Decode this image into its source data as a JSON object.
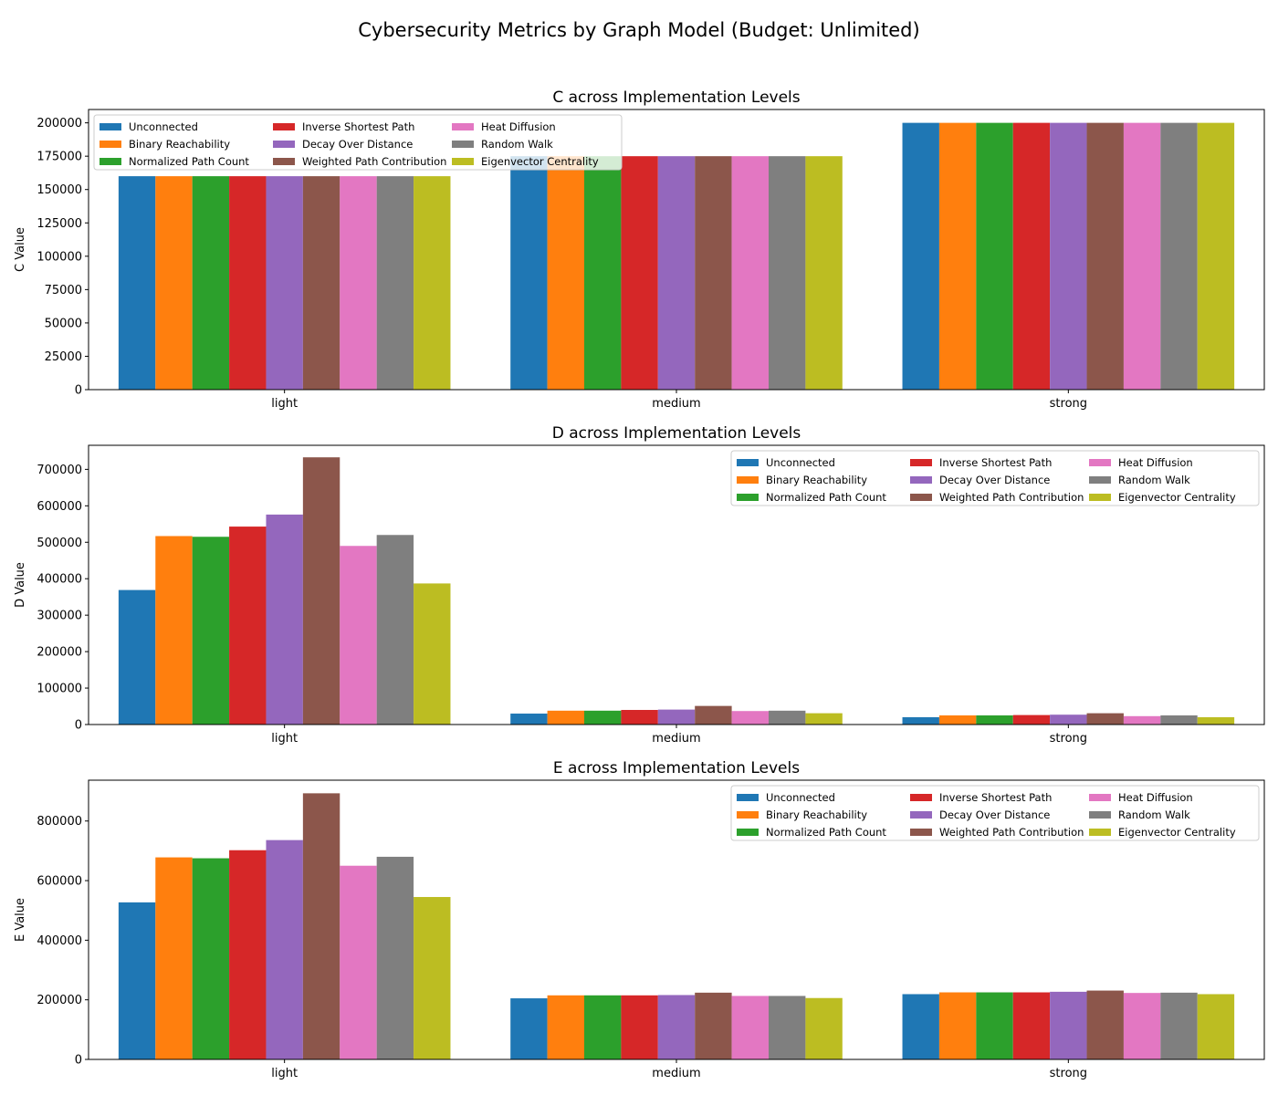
{
  "figure": {
    "title": "Cybersecurity Metrics by Graph Model (Budget: Unlimited)"
  },
  "colors": {
    "Unconnected": "#1f77b4",
    "Binary Reachability": "#ff7f0e",
    "Normalized Path Count": "#2ca02c",
    "Inverse Shortest Path": "#d62728",
    "Decay Over Distance": "#9467bd",
    "Weighted Path Contribution": "#8c564b",
    "Heat Diffusion": "#e377c2",
    "Random Walk": "#7f7f7f",
    "Eigenvector Centrality": "#bcbd22"
  },
  "chart_data": [
    {
      "type": "bar",
      "title": "C across Implementation Levels",
      "ylabel": "C Value",
      "xlabel": "",
      "categories": [
        "light",
        "medium",
        "strong"
      ],
      "ylim": [
        0,
        210000
      ],
      "yticks": [
        0,
        25000,
        50000,
        75000,
        100000,
        125000,
        150000,
        175000,
        200000
      ],
      "legend_position": "upper-left",
      "series": [
        {
          "name": "Unconnected",
          "values": [
            160000,
            175000,
            200000
          ]
        },
        {
          "name": "Binary Reachability",
          "values": [
            160000,
            175000,
            200000
          ]
        },
        {
          "name": "Normalized Path Count",
          "values": [
            160000,
            175000,
            200000
          ]
        },
        {
          "name": "Inverse Shortest Path",
          "values": [
            160000,
            175000,
            200000
          ]
        },
        {
          "name": "Decay Over Distance",
          "values": [
            160000,
            175000,
            200000
          ]
        },
        {
          "name": "Weighted Path Contribution",
          "values": [
            160000,
            175000,
            200000
          ]
        },
        {
          "name": "Heat Diffusion",
          "values": [
            160000,
            175000,
            200000
          ]
        },
        {
          "name": "Random Walk",
          "values": [
            160000,
            175000,
            200000
          ]
        },
        {
          "name": "Eigenvector Centrality",
          "values": [
            160000,
            175000,
            200000
          ]
        }
      ]
    },
    {
      "type": "bar",
      "title": "D across Implementation Levels",
      "ylabel": "D Value",
      "xlabel": "",
      "categories": [
        "light",
        "medium",
        "strong"
      ],
      "ylim": [
        0,
        766000
      ],
      "yticks": [
        0,
        100000,
        200000,
        300000,
        400000,
        500000,
        600000,
        700000
      ],
      "legend_position": "upper-right",
      "series": [
        {
          "name": "Unconnected",
          "values": [
            369000,
            30000,
            20000
          ]
        },
        {
          "name": "Binary Reachability",
          "values": [
            517000,
            38000,
            25000
          ]
        },
        {
          "name": "Normalized Path Count",
          "values": [
            515000,
            38000,
            25000
          ]
        },
        {
          "name": "Inverse Shortest Path",
          "values": [
            543000,
            40000,
            26000
          ]
        },
        {
          "name": "Decay Over Distance",
          "values": [
            576000,
            41000,
            27000
          ]
        },
        {
          "name": "Weighted Path Contribution",
          "values": [
            733000,
            51000,
            31000
          ]
        },
        {
          "name": "Heat Diffusion",
          "values": [
            490000,
            37000,
            23000
          ]
        },
        {
          "name": "Random Walk",
          "values": [
            520000,
            38000,
            25000
          ]
        },
        {
          "name": "Eigenvector Centrality",
          "values": [
            387000,
            31000,
            20000
          ]
        }
      ]
    },
    {
      "type": "bar",
      "title": "E across Implementation Levels",
      "ylabel": "E Value",
      "xlabel": "",
      "categories": [
        "light",
        "medium",
        "strong"
      ],
      "ylim": [
        0,
        937000
      ],
      "yticks": [
        0,
        200000,
        400000,
        600000,
        800000
      ],
      "legend_position": "upper-right",
      "series": [
        {
          "name": "Unconnected",
          "values": [
            527000,
            205000,
            219000
          ]
        },
        {
          "name": "Binary Reachability",
          "values": [
            678000,
            215000,
            225000
          ]
        },
        {
          "name": "Normalized Path Count",
          "values": [
            675000,
            215000,
            225000
          ]
        },
        {
          "name": "Inverse Shortest Path",
          "values": [
            702000,
            215000,
            225000
          ]
        },
        {
          "name": "Decay Over Distance",
          "values": [
            736000,
            216000,
            227000
          ]
        },
        {
          "name": "Weighted Path Contribution",
          "values": [
            893000,
            224000,
            231000
          ]
        },
        {
          "name": "Heat Diffusion",
          "values": [
            650000,
            213000,
            223000
          ]
        },
        {
          "name": "Random Walk",
          "values": [
            680000,
            213000,
            224000
          ]
        },
        {
          "name": "Eigenvector Centrality",
          "values": [
            545000,
            206000,
            219000
          ]
        }
      ]
    }
  ]
}
